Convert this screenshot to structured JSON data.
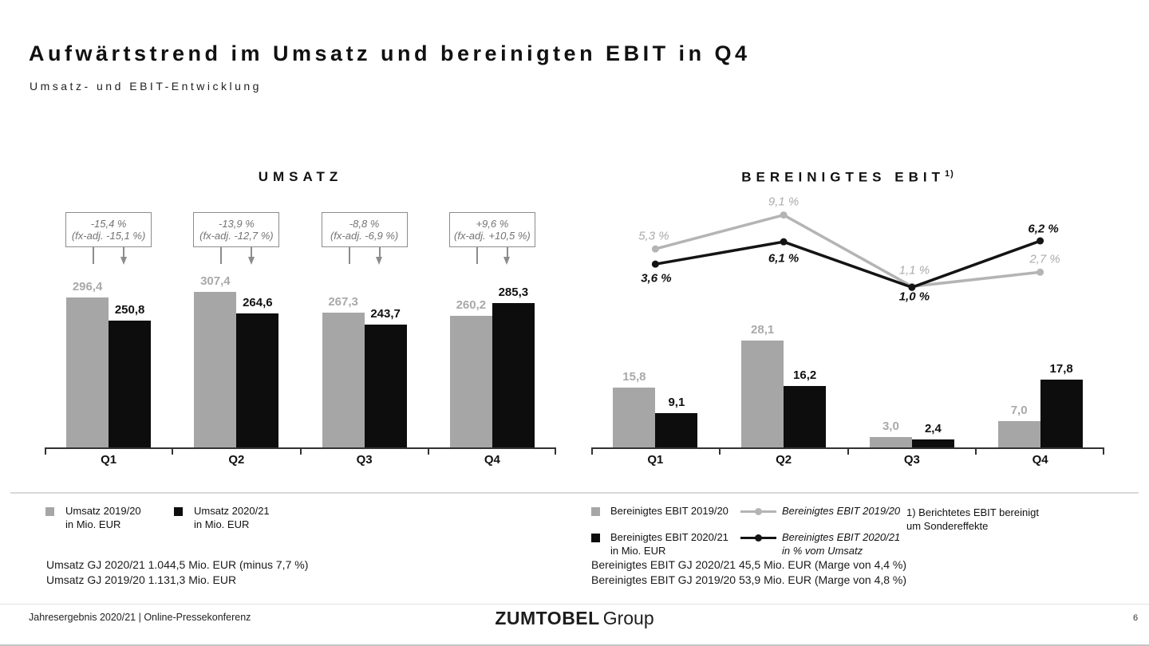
{
  "header": {
    "title": "Aufwärtstrend im Umsatz und bereinigten EBIT in Q4",
    "subtitle": "Umsatz- und EBIT-Entwicklung"
  },
  "chart_data": [
    {
      "type": "bar",
      "title": "UMSATZ",
      "categories": [
        "Q1",
        "Q2",
        "Q3",
        "Q4"
      ],
      "ylim": [
        0,
        330
      ],
      "series": [
        {
          "name": "Umsatz 2019/20 in Mio. EUR",
          "color": "#a6a6a6",
          "label_color": "#a9a9a9",
          "values": [
            296.4,
            307.4,
            267.3,
            260.2
          ],
          "labels": [
            "296,4",
            "307,4",
            "267,3",
            "260,2"
          ]
        },
        {
          "name": "Umsatz 2020/21 in Mio. EUR",
          "color": "#0d0d0d",
          "label_color": "#111111",
          "values": [
            250.8,
            264.6,
            243.7,
            285.3
          ],
          "labels": [
            "250,8",
            "264,6",
            "243,7",
            "285,3"
          ]
        }
      ],
      "annotations": [
        {
          "pct": "-15,4 %",
          "fx": "(fx-adj. -15,1 %)"
        },
        {
          "pct": "-13,9 %",
          "fx": "(fx-adj. -12,7 %)"
        },
        {
          "pct": "-8,8 %",
          "fx": "(fx-adj. -6,9 %)"
        },
        {
          "pct": "+9,6 %",
          "fx": "(fx-adj. +10,5 %)"
        }
      ]
    },
    {
      "type": "bar+line",
      "title": "BEREINIGTES EBIT",
      "title_superscript": "1)",
      "categories": [
        "Q1",
        "Q2",
        "Q3",
        "Q4"
      ],
      "ylim_bars": [
        0,
        30
      ],
      "series": [
        {
          "name": "Bereinigtes EBIT 2019/20",
          "color": "#a6a6a6",
          "label_color": "#a9a9a9",
          "values": [
            15.8,
            28.1,
            3.0,
            7.0
          ],
          "labels": [
            "15,8",
            "28,1",
            "3,0",
            "7,0"
          ]
        },
        {
          "name": "Bereinigtes EBIT 2020/21 in Mio. EUR",
          "color": "#0d0d0d",
          "label_color": "#111111",
          "values": [
            9.1,
            16.2,
            2.4,
            17.8
          ],
          "labels": [
            "9,1",
            "16,2",
            "2,4",
            "17,8"
          ]
        }
      ],
      "line_series": [
        {
          "name": "Bereinigtes EBIT 2019/20 in % vom Umsatz",
          "color": "#b4b4b4",
          "label_color": "#ababab",
          "values": [
            5.3,
            9.1,
            1.1,
            2.7
          ],
          "labels": [
            "5,3 %",
            "9,1 %",
            "1,1 %",
            "2,7 %"
          ]
        },
        {
          "name": "Bereinigtes EBIT 2020/21 in % vom Umsatz",
          "color": "#141414",
          "label_color": "#111111",
          "values": [
            3.6,
            6.1,
            1.0,
            6.2
          ],
          "labels": [
            "3,6 %",
            "6,1 %",
            "1,0 %",
            "6,2 %"
          ]
        }
      ]
    }
  ],
  "legend_left": {
    "items": [
      {
        "swatch": "#a6a6a6",
        "line1": "Umsatz 2019/20",
        "line2": "in Mio. EUR"
      },
      {
        "swatch": "#0d0d0d",
        "line1": "Umsatz 2020/21",
        "line2": "in Mio. EUR"
      }
    ]
  },
  "legend_right": {
    "square_items": [
      {
        "swatch": "#a6a6a6",
        "line1": "Bereinigtes EBIT 2019/20",
        "line2": ""
      },
      {
        "swatch": "#0d0d0d",
        "line1": "Bereinigtes EBIT 2020/21",
        "line2": "in Mio. EUR"
      }
    ],
    "line_items": [
      {
        "color": "#b4b4b4",
        "line1": "Bereinigtes EBIT 2019/20",
        "line2": ""
      },
      {
        "color": "#141414",
        "line1": "Bereinigtes EBIT 2020/21",
        "line2": "in % vom Umsatz"
      }
    ]
  },
  "summary_left": {
    "line1": "Umsatz GJ 2020/21 1.044,5 Mio. EUR (minus 7,7 %)",
    "line2": "Umsatz GJ 2019/20 1.131,3 Mio. EUR"
  },
  "summary_right": {
    "line1": "Bereinigtes EBIT GJ 2020/21 45,5 Mio. EUR (Marge von 4,4 %)",
    "line2": "Bereinigtes EBIT GJ 2019/20 53,9 Mio. EUR (Marge von 4,8 %)"
  },
  "footnote": {
    "line1": "1) Berichtetes EBIT bereinigt",
    "line2": "um Sondereffekte"
  },
  "footer": {
    "left": "Jahresergebnis 2020/21 | Online-Pressekonferenz",
    "logo_bold": "ZUMTOBEL",
    "logo_light": "Group",
    "page": "6"
  }
}
